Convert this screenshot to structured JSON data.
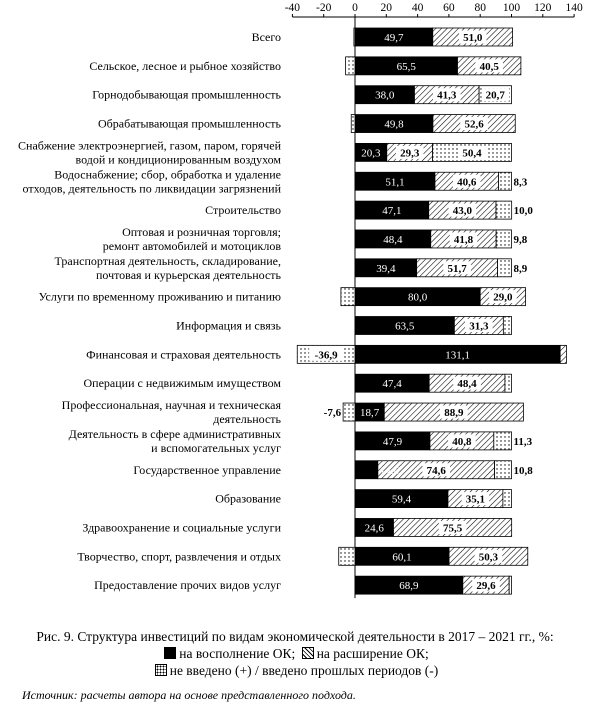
{
  "chart_data": {
    "type": "bar",
    "stacked": true,
    "orientation": "horizontal",
    "xlim": [
      -40,
      140
    ],
    "xticks": [
      -40,
      -20,
      0,
      20,
      40,
      60,
      80,
      100,
      120,
      140
    ],
    "categories": [
      [
        "Всего"
      ],
      [
        "Сельское, лесное и рыбное хозяйство"
      ],
      [
        "Горнодобывающая промышленность"
      ],
      [
        "Обрабатывающая промышленность"
      ],
      [
        "Снабжение электроэнергией, газом, паром, горячей",
        "водой и кондиционированным воздухом"
      ],
      [
        "Водоснабжение; сбор, обработка и удаление",
        "отходов, деятельность по ликвидации загрязнений"
      ],
      [
        "Строительство"
      ],
      [
        "Оптовая и розничная торговля;",
        "ремонт автомобилей и мотоциклов"
      ],
      [
        "Транспортная деятельность, складирование,",
        "почтовая и курьерская деятельность"
      ],
      [
        "Услуги по временному проживанию и питанию"
      ],
      [
        "Информация и связь"
      ],
      [
        "Финансовая и страховая деятельность"
      ],
      [
        "Операции с недвижимым имуществом"
      ],
      [
        "Профессиональная, научная и техническая",
        "деятельность"
      ],
      [
        "Деятельность в сфере административных",
        "и вспомогательных услуг"
      ],
      [
        "Государственное управление"
      ],
      [
        "Образование"
      ],
      [
        "Здравоохранение и социальные услуги"
      ],
      [
        "Творчество, спорт, развлечения и отдых"
      ],
      [
        "Предоставление прочих видов услуг"
      ]
    ],
    "series": [
      {
        "name": "на восполнение ОК",
        "pattern": "solid",
        "color": "#000000",
        "values": [
          49.7,
          65.5,
          38.0,
          49.8,
          20.3,
          51.1,
          47.1,
          48.4,
          39.4,
          80.0,
          63.5,
          131.1,
          47.4,
          18.7,
          47.9,
          14.6,
          59.4,
          24.6,
          60.1,
          68.9
        ],
        "labels": [
          "49,7",
          "65,5",
          "38,0",
          "49,8",
          "20,3",
          "51,1",
          "47,1",
          "48,4",
          "39,4",
          "80,0",
          "63,5",
          "131,1",
          "47,4",
          "18,7",
          "47,9",
          "14,6",
          "59,4",
          "24,6",
          "60,1",
          "68,9"
        ]
      },
      {
        "name": "на расширение ОК",
        "pattern": "hatch",
        "color": "#000000",
        "values": [
          51.0,
          40.5,
          41.3,
          52.6,
          29.3,
          40.6,
          43.0,
          41.8,
          51.7,
          29.0,
          31.3,
          4.0,
          48.4,
          88.9,
          40.8,
          74.6,
          35.1,
          75.5,
          50.3,
          29.6
        ],
        "labels": [
          "51,0",
          "40,5",
          "41,3",
          "52,6",
          "29,3",
          "40,6",
          "43,0",
          "41,8",
          "51,7",
          "29,0",
          "31,3",
          "",
          "48,4",
          "88,9",
          "40,8",
          "74,6",
          "35,1",
          "75,5",
          "50,3",
          "29,6"
        ]
      },
      {
        "name": "не введено (+) / введено прошлых периодов (-)",
        "pattern": "dots",
        "color": "#000000",
        "values": [
          -0.7,
          -6.0,
          20.7,
          -2.4,
          50.4,
          8.3,
          10.0,
          9.8,
          8.9,
          -9.0,
          5.2,
          -36.9,
          4.2,
          -7.6,
          11.3,
          10.8,
          5.5,
          -0.1,
          -10.4,
          1.5
        ],
        "labels": [
          "",
          "",
          "20,7",
          "",
          "50,4",
          "8,3",
          "10,0",
          "9,8",
          "8,9",
          "",
          "",
          "-36,9",
          "",
          "-7,6",
          "11,3",
          "10,8",
          "",
          "",
          "",
          ""
        ]
      }
    ],
    "caption": "Рис. 9. Структура инвестиций по видам экономической деятельности в 2017 – 2021 гг., %:",
    "legend": {
      "solid": "на восполнение ОК;",
      "hatch": "на расширение ОК;",
      "dots": "не введено (+) / введено прошлых периодов (-)"
    },
    "source": "Источник: расчеты автора на основе представленного подхода."
  }
}
